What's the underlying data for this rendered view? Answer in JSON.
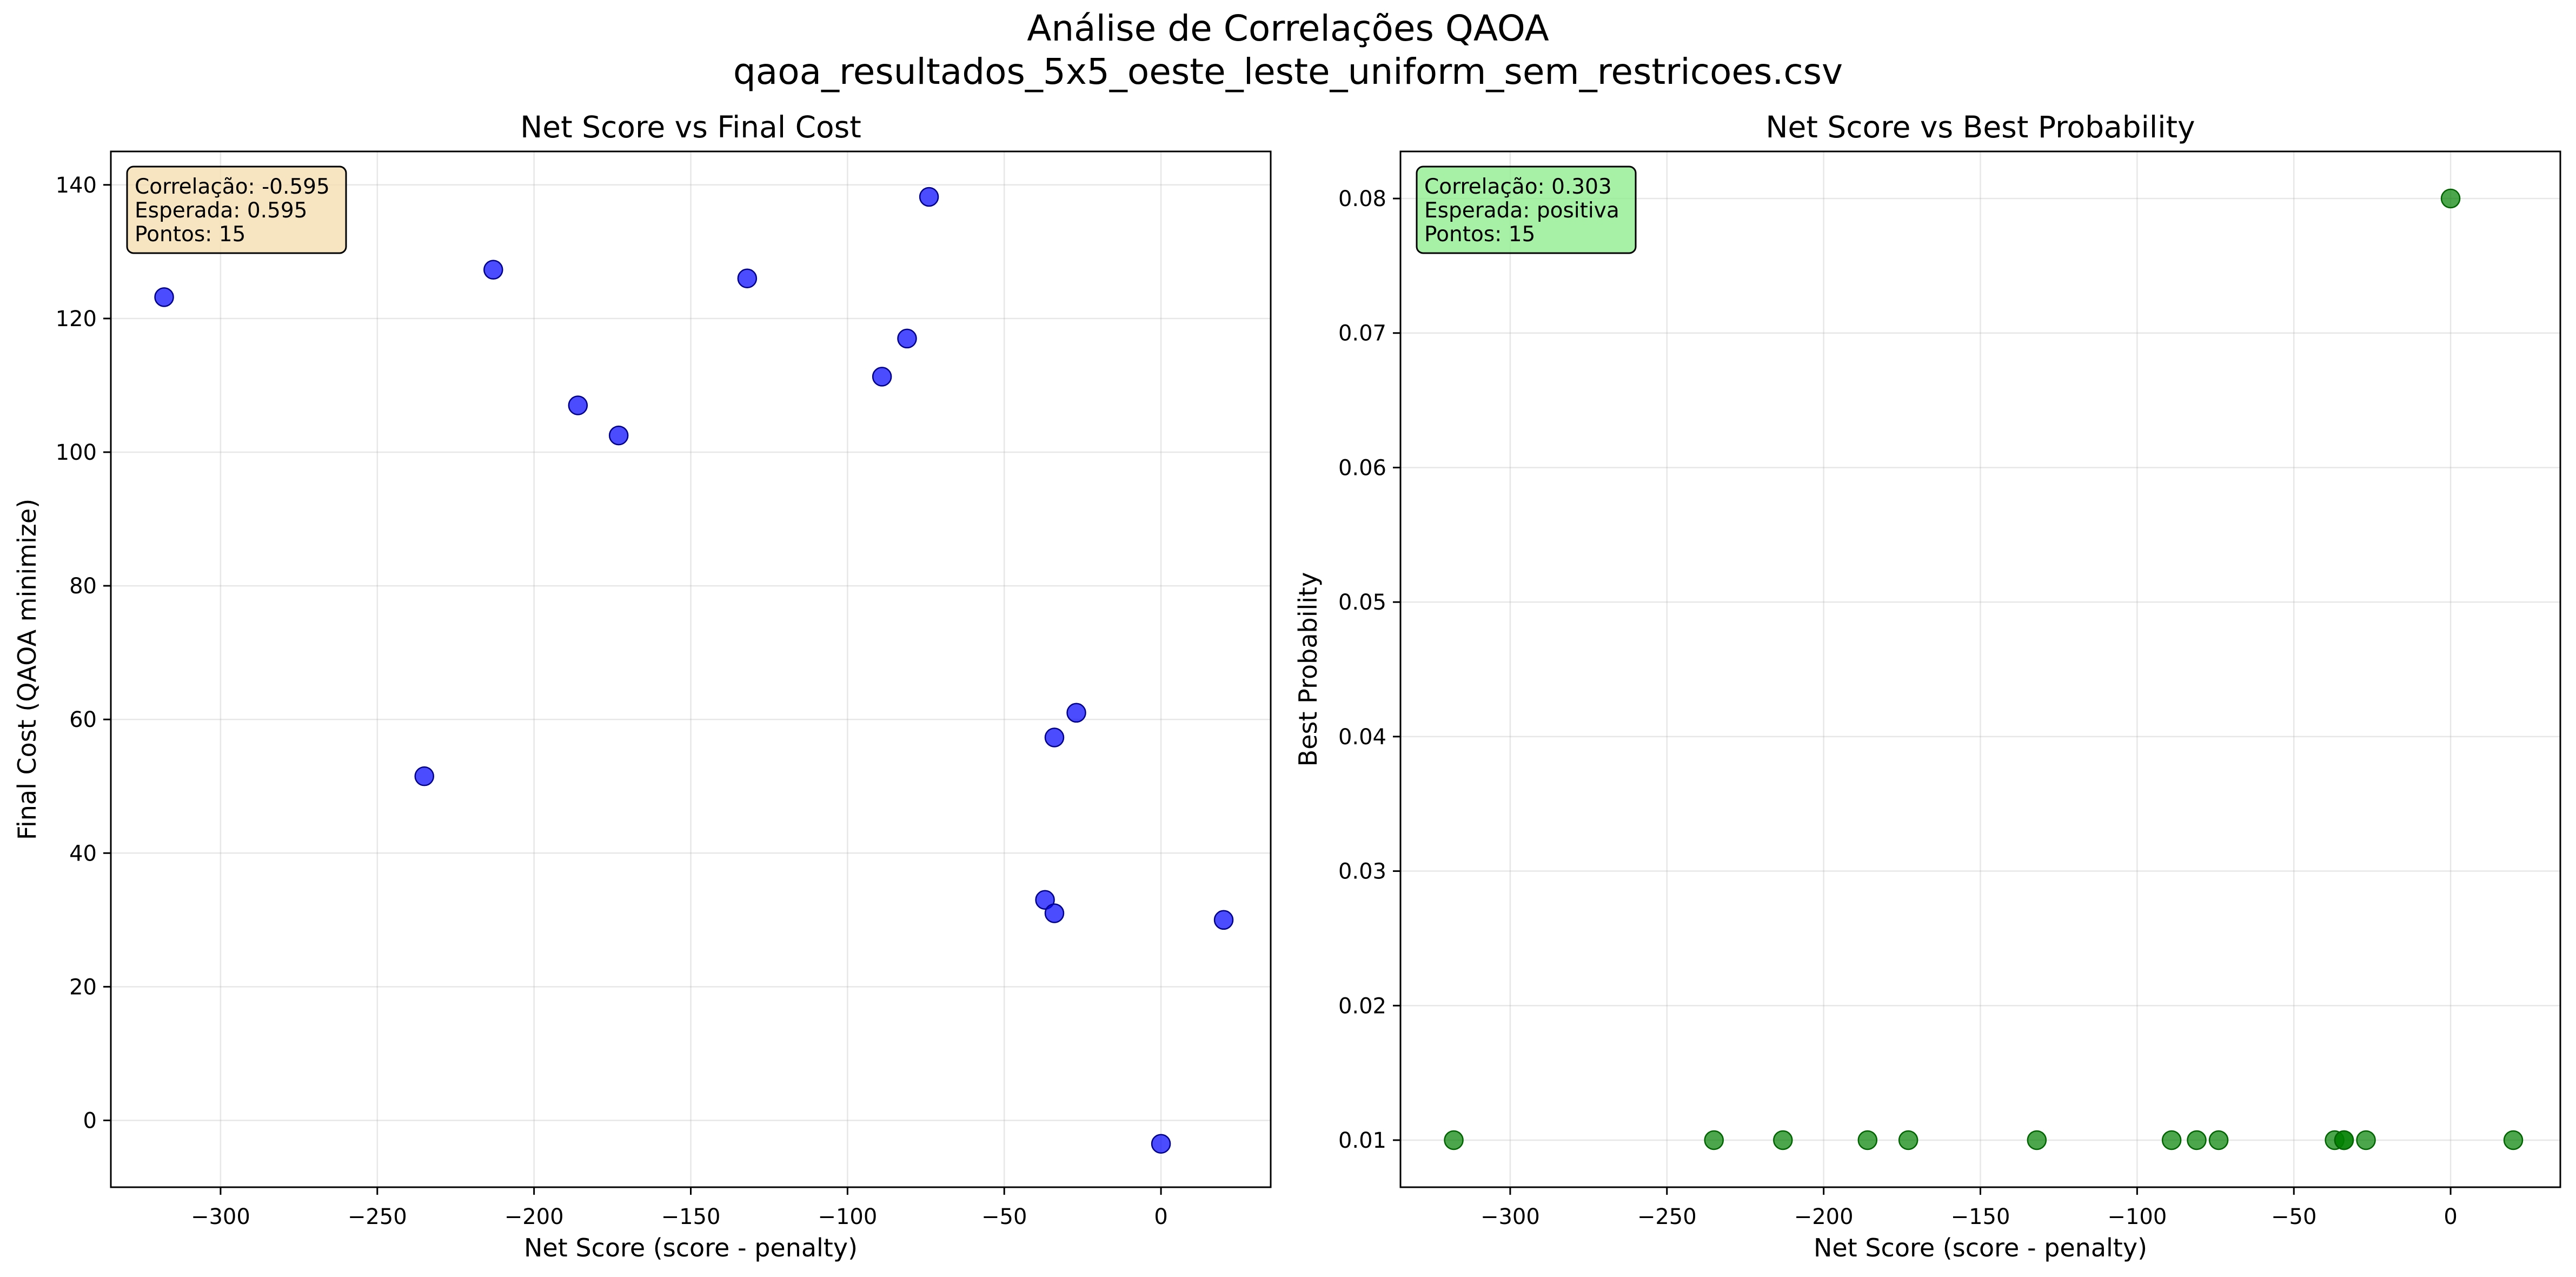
{
  "figure": {
    "title_line1": "Análise de Correlações QAOA",
    "title_line2": "qaoa_resultados_5x5_oeste_leste_uniform_sem_restricoes.csv"
  },
  "chart_data": [
    {
      "type": "scatter",
      "title": "Net Score vs Final Cost",
      "xlabel": "Net Score (score - penalty)",
      "ylabel": "Final Cost (QAOA minimize)",
      "xlim": [
        -335,
        35
      ],
      "ylim": [
        -10,
        145
      ],
      "xticks": [
        -300,
        -250,
        -200,
        -150,
        -100,
        -50,
        0
      ],
      "xtick_labels": [
        "−300",
        "−250",
        "−200",
        "−150",
        "−100",
        "−50",
        "0"
      ],
      "yticks": [
        0,
        20,
        40,
        60,
        80,
        100,
        120,
        140
      ],
      "ytick_labels": [
        "0",
        "20",
        "40",
        "60",
        "80",
        "100",
        "120",
        "140"
      ],
      "grid": true,
      "point_color": "#0000ff",
      "point_edge": "#00008b",
      "points": [
        {
          "x": -318,
          "y": 123.2
        },
        {
          "x": -213,
          "y": 127.3
        },
        {
          "x": -186,
          "y": 107.0
        },
        {
          "x": -173,
          "y": 102.5
        },
        {
          "x": -235,
          "y": 51.5
        },
        {
          "x": -132,
          "y": 126.0
        },
        {
          "x": -89,
          "y": 111.3
        },
        {
          "x": -81,
          "y": 117.0
        },
        {
          "x": -74,
          "y": 138.2
        },
        {
          "x": -37,
          "y": 33.0
        },
        {
          "x": -34,
          "y": 57.3
        },
        {
          "x": -34,
          "y": 31.0
        },
        {
          "x": -27,
          "y": 61.0
        },
        {
          "x": 0,
          "y": -3.5
        },
        {
          "x": 20,
          "y": 30.0
        }
      ],
      "annotation": {
        "lines": [
          "Correlação: -0.595",
          "Esperada: 0.595",
          "Pontos: 15"
        ],
        "background": "#f5deb3",
        "placement": "top-left"
      }
    },
    {
      "type": "scatter",
      "title": "Net Score vs Best Probability",
      "xlabel": "Net Score (score - penalty)",
      "ylabel": "Best Probability",
      "xlim": [
        -335,
        35
      ],
      "ylim": [
        0.0065,
        0.0835
      ],
      "xticks": [
        -300,
        -250,
        -200,
        -150,
        -100,
        -50,
        0
      ],
      "xtick_labels": [
        "−300",
        "−250",
        "−200",
        "−150",
        "−100",
        "−50",
        "0"
      ],
      "yticks": [
        0.01,
        0.02,
        0.03,
        0.04,
        0.05,
        0.06,
        0.07,
        0.08
      ],
      "ytick_labels": [
        "0.01",
        "0.02",
        "0.03",
        "0.04",
        "0.05",
        "0.06",
        "0.07",
        "0.08"
      ],
      "grid": true,
      "point_color": "#008000",
      "point_edge": "#006400",
      "points": [
        {
          "x": -318,
          "y": 0.01
        },
        {
          "x": -235,
          "y": 0.01
        },
        {
          "x": -213,
          "y": 0.01
        },
        {
          "x": -186,
          "y": 0.01
        },
        {
          "x": -173,
          "y": 0.01
        },
        {
          "x": -132,
          "y": 0.01
        },
        {
          "x": -89,
          "y": 0.01
        },
        {
          "x": -81,
          "y": 0.01
        },
        {
          "x": -74,
          "y": 0.01
        },
        {
          "x": -37,
          "y": 0.01
        },
        {
          "x": -34,
          "y": 0.01
        },
        {
          "x": -34,
          "y": 0.01
        },
        {
          "x": -27,
          "y": 0.01
        },
        {
          "x": 0,
          "y": 0.08
        },
        {
          "x": 20,
          "y": 0.01
        }
      ],
      "annotation": {
        "lines": [
          "Correlação: 0.303",
          "Esperada: positiva",
          "Pontos: 15"
        ],
        "background": "#90ee90",
        "placement": "top-left"
      }
    }
  ]
}
